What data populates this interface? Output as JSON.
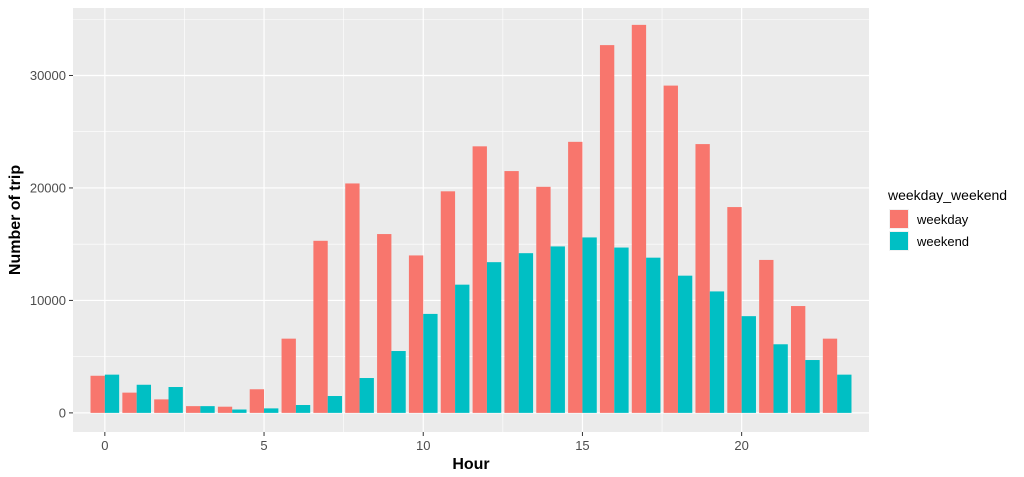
{
  "chart_data": {
    "type": "bar",
    "xlabel": "Hour",
    "ylabel": "Number of trip",
    "xlim": [
      -1,
      24
    ],
    "ylim": [
      -1700,
      36000
    ],
    "x_ticks": [
      0,
      5,
      10,
      15,
      20
    ],
    "y_ticks": [
      0,
      10000,
      20000,
      30000
    ],
    "grid": true,
    "legend": {
      "title": "weekday_weekend",
      "position": "right"
    },
    "hours": [
      0,
      1,
      2,
      3,
      4,
      5,
      6,
      7,
      8,
      9,
      10,
      11,
      12,
      13,
      14,
      15,
      16,
      17,
      18,
      19,
      20,
      21,
      22,
      23
    ],
    "series": [
      {
        "name": "weekday",
        "color": "#F8766D",
        "values": [
          3300,
          1800,
          1200,
          600,
          550,
          2100,
          6600,
          15300,
          20400,
          15900,
          14000,
          19700,
          23700,
          21500,
          20100,
          24100,
          32700,
          34500,
          29100,
          23900,
          18300,
          13600,
          9500,
          6600
        ]
      },
      {
        "name": "weekend",
        "color": "#00BFC4",
        "values": [
          3400,
          2500,
          2300,
          600,
          300,
          400,
          700,
          1500,
          3100,
          5500,
          8800,
          11400,
          13400,
          14200,
          14800,
          15600,
          14700,
          13800,
          12200,
          10800,
          8600,
          6100,
          4700,
          3400
        ]
      }
    ]
  }
}
